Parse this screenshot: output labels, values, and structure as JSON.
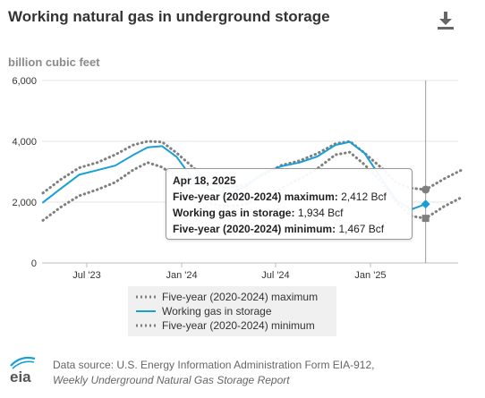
{
  "header": {
    "title": "Working natural gas in underground storage",
    "units": "billion cubic feet",
    "download_icon": "download-icon"
  },
  "chart_data": {
    "type": "line",
    "ylim": [
      0,
      6000
    ],
    "y_ticks": [
      "0",
      "2,000",
      "4,000",
      "6,000"
    ],
    "x_ticks": [
      "Jul '23",
      "Jan '24",
      "Jul '24",
      "Jan '25"
    ],
    "x_tick_dates": [
      "2023-07-01",
      "2024-01-01",
      "2024-07-01",
      "2025-01-01"
    ],
    "grid": "horizontal",
    "legend_position": "bottom",
    "series": [
      {
        "name": "Five-year (2020-2024) maximum",
        "style": "dotted",
        "color": "#7f7f7f",
        "points": [
          [
            "2023-04-07",
            2300
          ],
          [
            "2023-05-12",
            2750
          ],
          [
            "2023-06-16",
            3130
          ],
          [
            "2023-07-21",
            3300
          ],
          [
            "2023-08-25",
            3560
          ],
          [
            "2023-09-29",
            3880
          ],
          [
            "2023-10-27",
            4000
          ],
          [
            "2023-11-24",
            3980
          ],
          [
            "2023-12-22",
            3620
          ],
          [
            "2024-01-26",
            3100
          ],
          [
            "2024-02-23",
            2620
          ],
          [
            "2024-03-29",
            2470
          ],
          [
            "2024-05-03",
            2560
          ],
          [
            "2024-06-07",
            2900
          ],
          [
            "2024-07-12",
            3210
          ],
          [
            "2024-08-16",
            3360
          ],
          [
            "2024-09-20",
            3600
          ],
          [
            "2024-10-25",
            3920
          ],
          [
            "2024-11-22",
            4000
          ],
          [
            "2024-12-20",
            3620
          ],
          [
            "2025-01-24",
            3100
          ],
          [
            "2025-02-21",
            2620
          ],
          [
            "2025-03-21",
            2460
          ],
          [
            "2025-04-18",
            2412
          ],
          [
            "2025-05-23",
            2760
          ],
          [
            "2025-06-27",
            3060
          ]
        ]
      },
      {
        "name": "Working gas in storage",
        "style": "solid",
        "color": "#1a9fd5",
        "points": [
          [
            "2023-04-07",
            1990
          ],
          [
            "2023-05-12",
            2450
          ],
          [
            "2023-06-16",
            2900
          ],
          [
            "2023-07-21",
            3050
          ],
          [
            "2023-08-25",
            3200
          ],
          [
            "2023-09-29",
            3550
          ],
          [
            "2023-10-27",
            3800
          ],
          [
            "2023-11-24",
            3840
          ],
          [
            "2023-12-22",
            3490
          ],
          [
            "2024-01-26",
            2680
          ],
          [
            "2024-02-23",
            2430
          ],
          [
            "2024-03-29",
            2280
          ],
          [
            "2024-05-03",
            2500
          ],
          [
            "2024-06-07",
            2950
          ],
          [
            "2024-07-12",
            3180
          ],
          [
            "2024-08-16",
            3300
          ],
          [
            "2024-09-20",
            3500
          ],
          [
            "2024-10-25",
            3880
          ],
          [
            "2024-11-22",
            3980
          ],
          [
            "2024-12-20",
            3620
          ],
          [
            "2025-01-24",
            2730
          ],
          [
            "2025-02-21",
            2050
          ],
          [
            "2025-03-21",
            1760
          ],
          [
            "2025-04-18",
            1934
          ]
        ]
      },
      {
        "name": "Five-year (2020-2024) minimum",
        "style": "dotted",
        "color": "#7f7f7f",
        "points": [
          [
            "2023-04-07",
            1400
          ],
          [
            "2023-05-12",
            1840
          ],
          [
            "2023-06-16",
            2210
          ],
          [
            "2023-07-21",
            2410
          ],
          [
            "2023-08-25",
            2650
          ],
          [
            "2023-09-29",
            3060
          ],
          [
            "2023-10-27",
            3300
          ],
          [
            "2023-11-24",
            3150
          ],
          [
            "2023-12-22",
            2820
          ],
          [
            "2024-01-26",
            2300
          ],
          [
            "2024-02-23",
            1960
          ],
          [
            "2024-03-29",
            1860
          ],
          [
            "2024-05-03",
            1930
          ],
          [
            "2024-06-07",
            2200
          ],
          [
            "2024-07-12",
            2450
          ],
          [
            "2024-08-16",
            2760
          ],
          [
            "2024-09-20",
            3100
          ],
          [
            "2024-10-25",
            3560
          ],
          [
            "2024-11-22",
            3640
          ],
          [
            "2024-12-20",
            3240
          ],
          [
            "2025-01-24",
            2640
          ],
          [
            "2025-02-21",
            1980
          ],
          [
            "2025-03-21",
            1540
          ],
          [
            "2025-04-18",
            1467
          ],
          [
            "2025-05-23",
            1850
          ],
          [
            "2025-06-27",
            2160
          ]
        ]
      }
    ],
    "hover": {
      "date_iso": "2025-04-18",
      "date_label": "Apr 18, 2025",
      "rows": [
        {
          "label": "Five-year (2020-2024) maximum:",
          "value": "2,412 Bcf"
        },
        {
          "label": "Working gas in storage:",
          "value": "1,934 Bcf"
        },
        {
          "label": "Five-year (2020-2024) minimum:",
          "value": "1,467 Bcf"
        }
      ]
    }
  },
  "legend": {
    "items": [
      {
        "label": "Five-year (2020-2024) maximum",
        "style": "dotted",
        "color": "#7f7f7f"
      },
      {
        "label": "Working gas in storage",
        "style": "solid",
        "color": "#1a9fd5"
      },
      {
        "label": "Five-year (2020-2024) minimum",
        "style": "dotted",
        "color": "#7f7f7f"
      }
    ]
  },
  "footer": {
    "logo_text": "eia",
    "source_line1": "Data source: U.S. Energy Information Administration Form EIA-912,",
    "source_line2": "Weekly Underground Natural Gas Storage Report"
  }
}
